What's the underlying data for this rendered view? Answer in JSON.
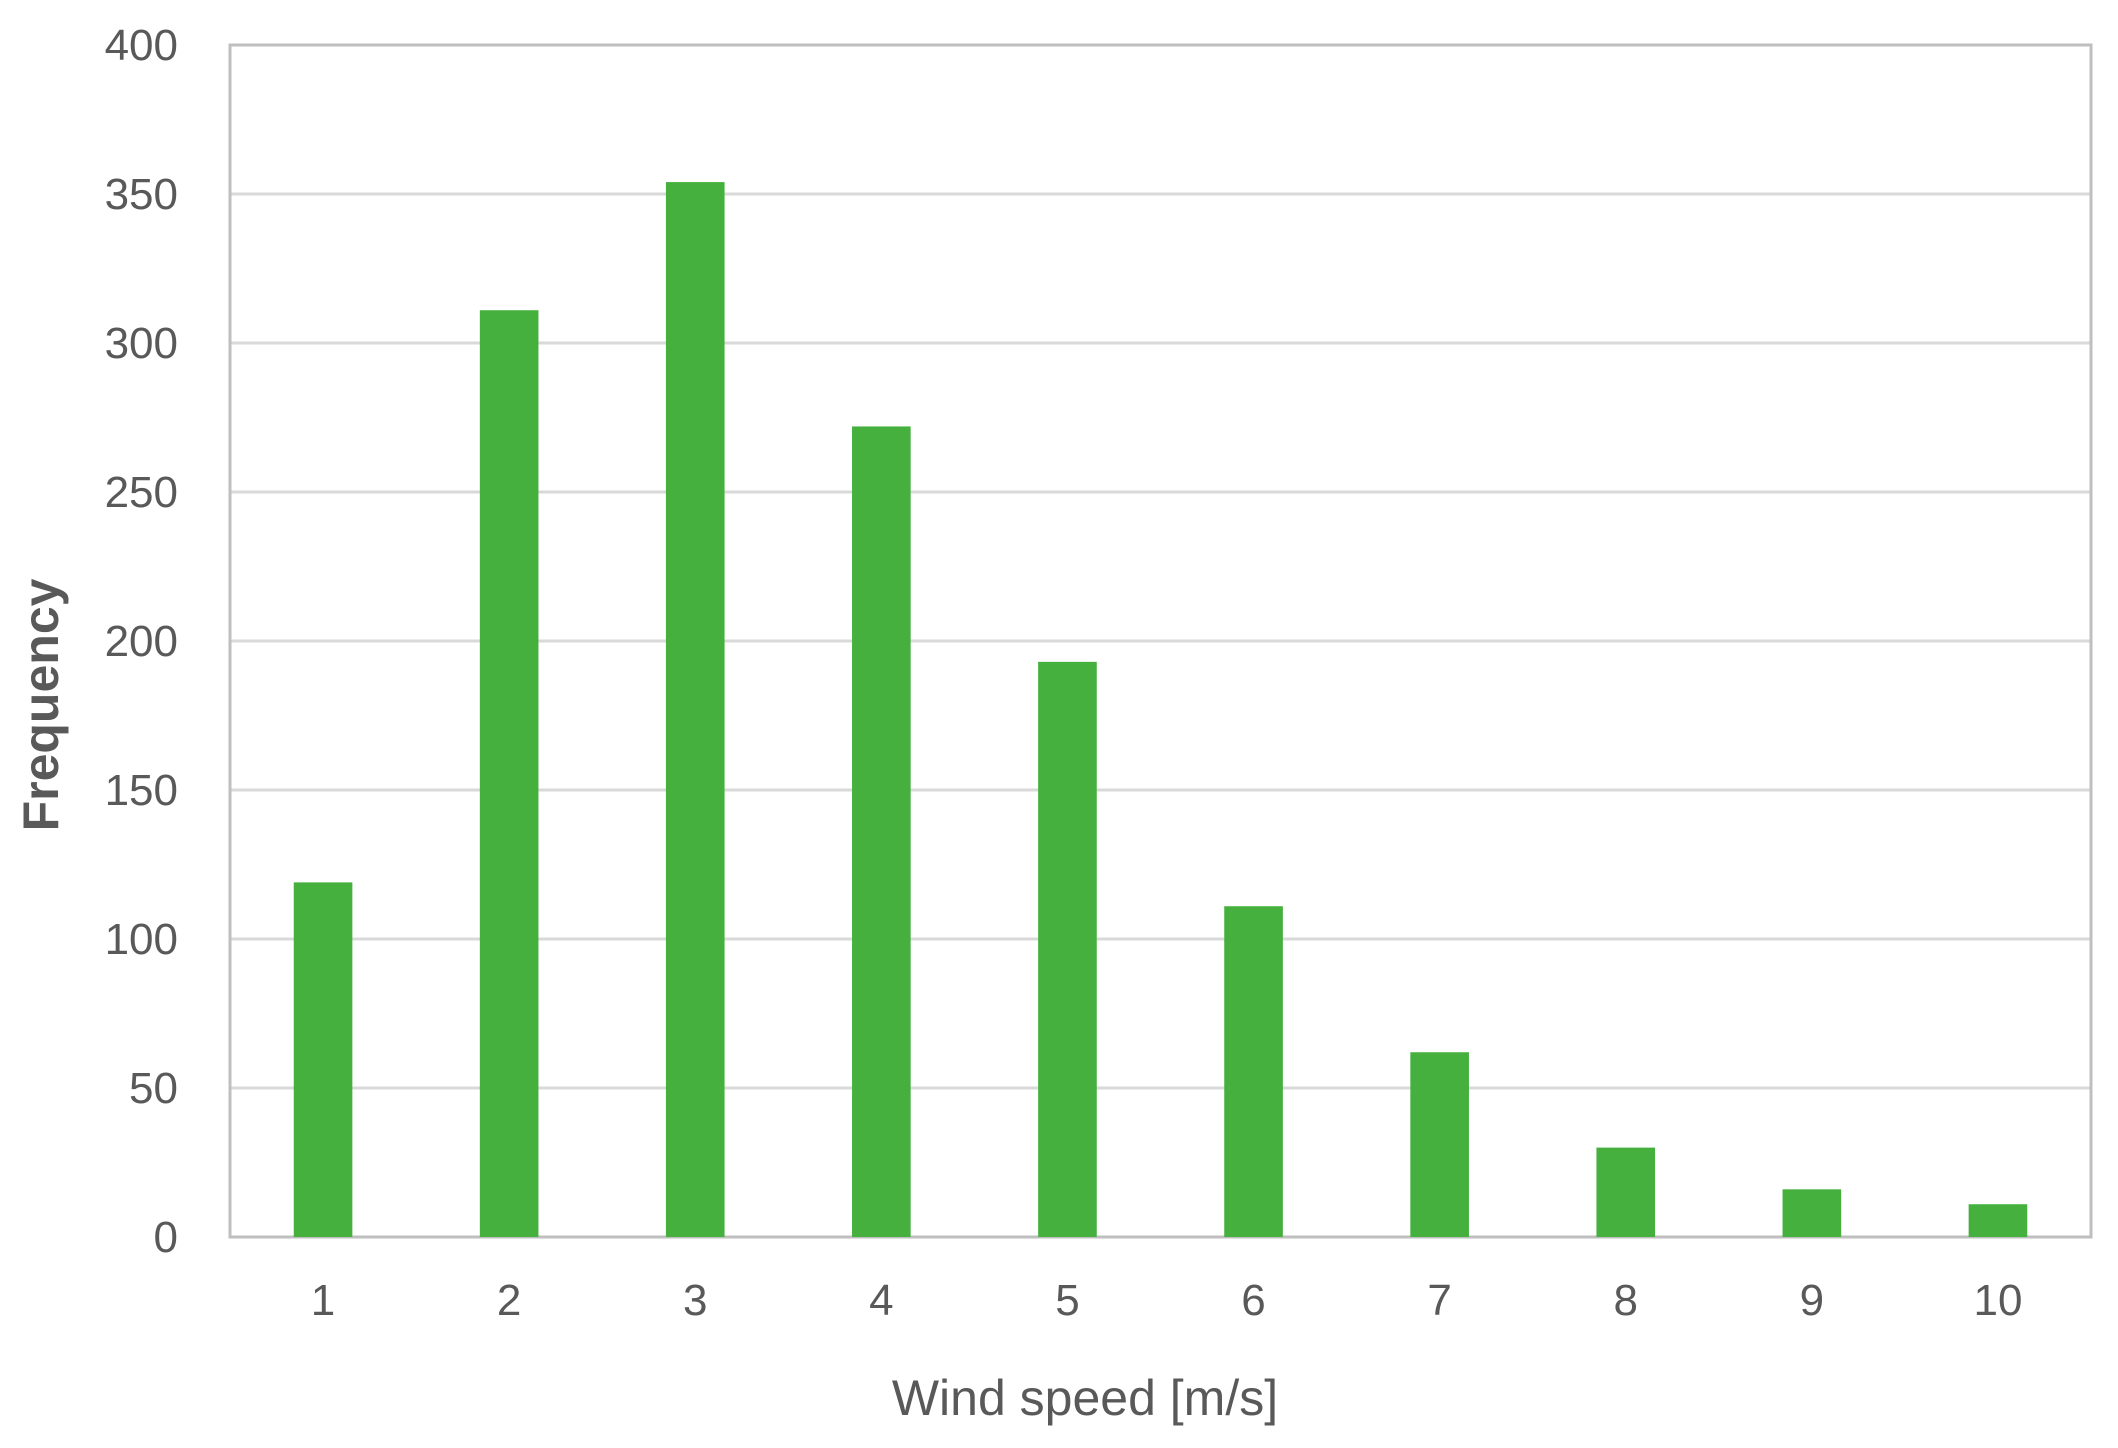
{
  "chart_data": {
    "type": "bar",
    "categories": [
      "1",
      "2",
      "3",
      "4",
      "5",
      "6",
      "7",
      "8",
      "9",
      "10"
    ],
    "values": [
      119,
      311,
      354,
      272,
      193,
      111,
      62,
      30,
      16,
      11
    ],
    "xlabel": "Wind speed [m/s]",
    "ylabel": "Frequency",
    "ylim": [
      0,
      400
    ],
    "yticks": [
      0,
      50,
      100,
      150,
      200,
      250,
      300,
      350,
      400
    ],
    "grid": true,
    "legend": "none",
    "colors": {
      "bar": "#45b03e",
      "grid": "#d9d9d9",
      "plot_border": "#bfbfbf",
      "text": "#595959"
    }
  }
}
